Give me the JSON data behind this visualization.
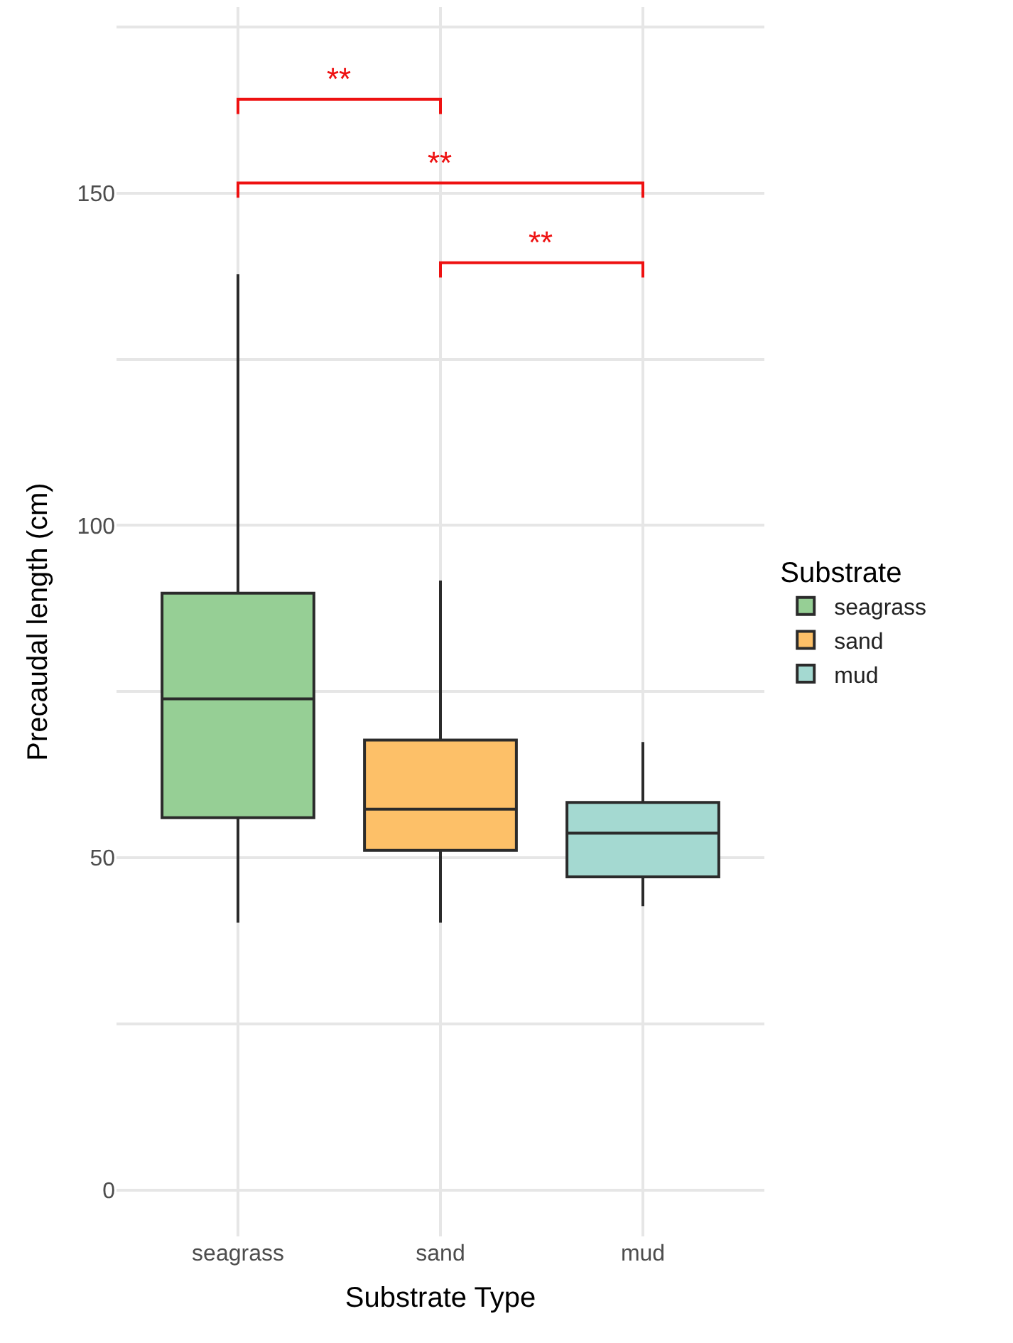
{
  "chart_data": {
    "type": "box",
    "xlabel": "Substrate Type",
    "ylabel": "Precaudal length (cm)",
    "legend_title": "Substrate",
    "categories": [
      "seagrass",
      "sand",
      "mud"
    ],
    "series": [
      {
        "name": "seagrass",
        "color": "#96cf95",
        "boxes": [
          {
            "low": 40.2,
            "q1": 56.0,
            "median": 73.9,
            "q3": 89.8,
            "high": 137.8
          },
          null,
          null
        ]
      },
      {
        "name": "sand",
        "color": "#fdc068",
        "boxes": [
          null,
          {
            "low": 40.2,
            "q1": 51.1,
            "median": 57.3,
            "q3": 67.7,
            "high": 91.7
          },
          null
        ]
      },
      {
        "name": "mud",
        "color": "#a4d9d1",
        "boxes": [
          null,
          null,
          {
            "low": 42.7,
            "q1": 47.1,
            "median": 53.7,
            "q3": 58.3,
            "high": 67.4
          }
        ]
      }
    ],
    "annotations": [
      "**",
      "**",
      "**"
    ],
    "ylim": [
      -7,
      178
    ],
    "yticks": [
      0,
      {
        "value": 25,
        "label": null
      },
      50,
      {
        "value": 75,
        "label": null
      },
      100,
      {
        "value": 125,
        "label": null
      },
      150,
      {
        "value": 175,
        "label": null
      }
    ],
    "grid": true,
    "legend": "right"
  }
}
